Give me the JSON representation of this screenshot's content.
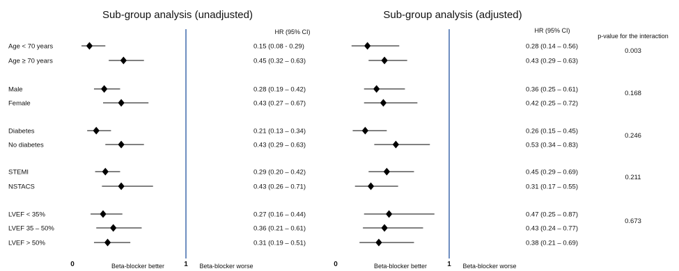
{
  "chart_data": [
    {
      "type": "forest",
      "title": "Sub-group analysis (unadjusted)",
      "hr_header": "HR (95% CI)",
      "x_ticks": [
        "0",
        "1"
      ],
      "xlim": [
        0,
        1
      ],
      "reference_line": 1,
      "x_left_label": "Beta-blocker better",
      "x_right_label": "Beta-blocker worse",
      "rows": [
        {
          "label": "Age < 70 years",
          "hr": 0.15,
          "lo": 0.08,
          "hi": 0.29,
          "text": "0.15 (0.08 - 0.29)"
        },
        {
          "label": "Age ≥ 70 years",
          "hr": 0.45,
          "lo": 0.32,
          "hi": 0.63,
          "text": "0.45 (0.32 – 0.63)"
        },
        {
          "label": "Male",
          "hr": 0.28,
          "lo": 0.19,
          "hi": 0.42,
          "text": "0.28 (0.19 – 0.42)"
        },
        {
          "label": "Female",
          "hr": 0.43,
          "lo": 0.27,
          "hi": 0.67,
          "text": "0.43 (0.27 – 0.67)"
        },
        {
          "label": "Diabetes",
          "hr": 0.21,
          "lo": 0.13,
          "hi": 0.34,
          "text": "0.21 (0.13 – 0.34)"
        },
        {
          "label": "No diabetes",
          "hr": 0.43,
          "lo": 0.29,
          "hi": 0.63,
          "text": "0.43 (0.29 – 0.63)"
        },
        {
          "label": "STEMI",
          "hr": 0.29,
          "lo": 0.2,
          "hi": 0.42,
          "text": "0.29 (0.20 – 0.42)"
        },
        {
          "label": "NSTACS",
          "hr": 0.43,
          "lo": 0.26,
          "hi": 0.71,
          "text": "0.43 (0.26 – 0.71)"
        },
        {
          "label": "LVEF < 35%",
          "hr": 0.27,
          "lo": 0.16,
          "hi": 0.44,
          "text": "0.27 (0.16 – 0.44)"
        },
        {
          "label": "LVEF 35 – 50%",
          "hr": 0.36,
          "lo": 0.21,
          "hi": 0.61,
          "text": "0.36 (0.21 – 0.61)"
        },
        {
          "label": "LVEF > 50%",
          "hr": 0.31,
          "lo": 0.19,
          "hi": 0.51,
          "text": "0.31 (0.19 – 0.51)"
        }
      ]
    },
    {
      "type": "forest",
      "title": "Sub-group analysis (adjusted)",
      "hr_header": "HR (95% CI)",
      "p_header": "p-value for the interaction",
      "x_ticks": [
        "0",
        "1"
      ],
      "xlim": [
        0,
        1
      ],
      "reference_line": 1,
      "x_left_label": "Beta-blocker better",
      "x_right_label": "Beta-blocker worse",
      "rows": [
        {
          "hr": 0.28,
          "lo": 0.14,
          "hi": 0.56,
          "text": "0.28 (0.14 – 0.56)"
        },
        {
          "hr": 0.43,
          "lo": 0.29,
          "hi": 0.63,
          "text": "0.43 (0.29 – 0.63)"
        },
        {
          "hr": 0.36,
          "lo": 0.25,
          "hi": 0.61,
          "text": "0.36 (0.25 – 0.61)"
        },
        {
          "hr": 0.42,
          "lo": 0.25,
          "hi": 0.72,
          "text": "0.42 (0.25 – 0.72)"
        },
        {
          "hr": 0.26,
          "lo": 0.15,
          "hi": 0.45,
          "text": "0.26 (0.15 – 0.45)"
        },
        {
          "hr": 0.53,
          "lo": 0.34,
          "hi": 0.83,
          "text": "0.53 (0.34 – 0.83)"
        },
        {
          "hr": 0.45,
          "lo": 0.29,
          "hi": 0.69,
          "text": "0.45 (0.29 – 0.69)"
        },
        {
          "hr": 0.31,
          "lo": 0.17,
          "hi": 0.55,
          "text": "0.31 (0.17 – 0.55)"
        },
        {
          "hr": 0.47,
          "lo": 0.25,
          "hi": 0.87,
          "text": "0.47 (0.25 – 0.87)"
        },
        {
          "hr": 0.43,
          "lo": 0.24,
          "hi": 0.77,
          "text": "0.43 (0.24 – 0.77)"
        },
        {
          "hr": 0.38,
          "lo": 0.21,
          "hi": 0.69,
          "text": "0.38 (0.21 – 0.69)"
        }
      ],
      "p_values": [
        "0.003",
        "0.168",
        "0.246",
        "0.211",
        "0.673"
      ]
    }
  ],
  "colors": {
    "reference_line": "#4a72b0",
    "marker": "#000000",
    "text": "#111111"
  }
}
